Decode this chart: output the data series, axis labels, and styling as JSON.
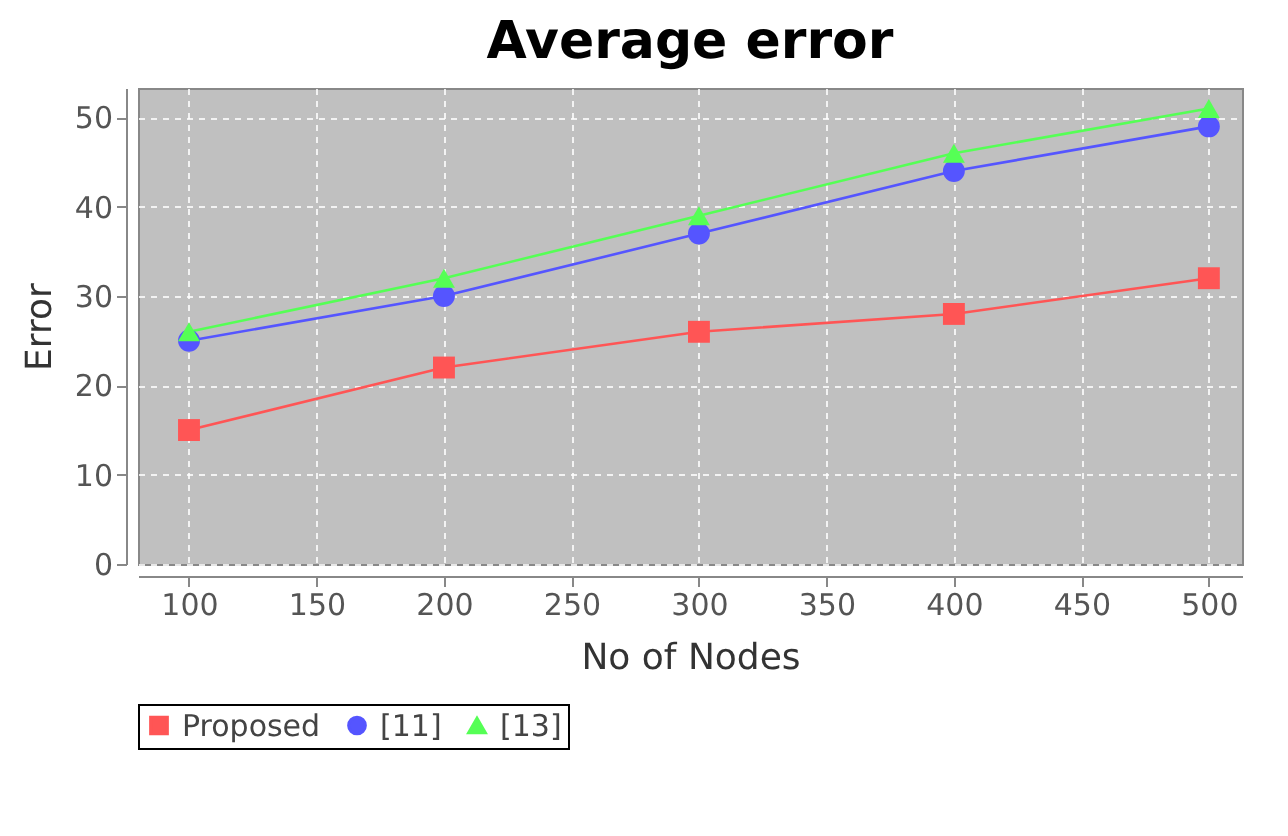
{
  "chart_data": {
    "type": "line",
    "title": "Average error",
    "xlabel": "No of Nodes",
    "ylabel": "Error",
    "x": [
      100,
      200,
      300,
      400,
      500
    ],
    "series": [
      {
        "name": "Proposed",
        "color": "#ff5555",
        "marker": "square",
        "values": [
          15,
          22,
          26,
          28,
          32
        ]
      },
      {
        "name": "[11]",
        "color": "#5555ff",
        "marker": "circle",
        "values": [
          25,
          30,
          37,
          44,
          49
        ]
      },
      {
        "name": "[13]",
        "color": "#55ff55",
        "marker": "triangle",
        "values": [
          26,
          32,
          39,
          46,
          51
        ]
      }
    ],
    "xlim": [
      80,
      513
    ],
    "xticks": [
      100,
      150,
      200,
      250,
      300,
      350,
      400,
      450,
      500
    ],
    "ylim": [
      0,
      53.3
    ],
    "yticks": [
      0,
      10,
      20,
      30,
      40,
      50
    ],
    "grid": true,
    "legend": "bottom"
  }
}
